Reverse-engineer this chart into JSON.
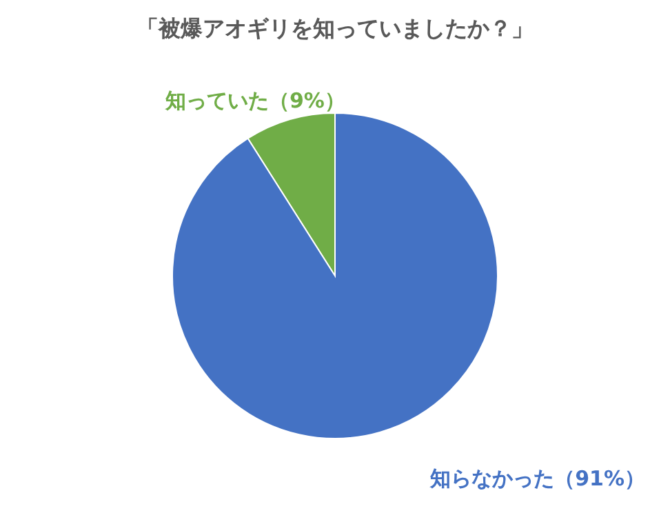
{
  "chart_data": {
    "type": "pie",
    "title": "「被爆アオギリを知っていましたか？」",
    "categories": [
      "知っていた",
      "知らなかった"
    ],
    "values": [
      9,
      91
    ],
    "colors": [
      "#70ad47",
      "#4472c4"
    ],
    "value_labels": [
      "（9%）",
      "（91%）"
    ],
    "legend": false
  }
}
